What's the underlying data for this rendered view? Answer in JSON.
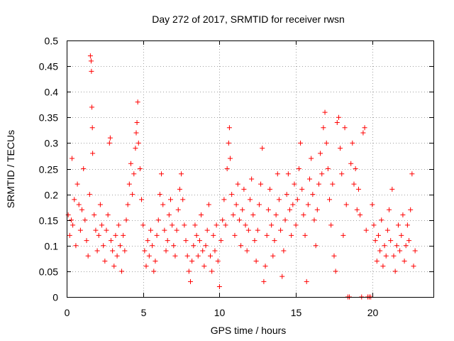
{
  "chart_data": {
    "type": "scatter",
    "title": "Day 272 of 2017, SRMTID for receiver rwsn",
    "xlabel": "GPS time / hours",
    "ylabel": "SRMTID / TECUs",
    "xlim": [
      0,
      24
    ],
    "ylim": [
      0,
      0.5
    ],
    "x_ticks": [
      0,
      5,
      10,
      15,
      20
    ],
    "x_tick_labels": [
      "0",
      "5",
      "10",
      "15",
      "20"
    ],
    "y_ticks": [
      0,
      0.05,
      0.1,
      0.15,
      0.2,
      0.25,
      0.3,
      0.35,
      0.4,
      0.45,
      0.5
    ],
    "y_tick_labels": [
      "0",
      "0.05",
      "0.1",
      "0.15",
      "0.2",
      "0.25",
      "0.3",
      "0.35",
      "0.4",
      "0.45",
      "0.5"
    ],
    "grid": true,
    "marker": "+",
    "series": [
      {
        "name": "SRMTID",
        "color": "#ff0000",
        "points": [
          [
            0.1,
            0.16
          ],
          [
            0.2,
            0.12
          ],
          [
            0.3,
            0.15
          ],
          [
            0.35,
            0.27
          ],
          [
            0.4,
            0.14
          ],
          [
            0.5,
            0.19
          ],
          [
            0.6,
            0.1
          ],
          [
            0.7,
            0.22
          ],
          [
            0.8,
            0.18
          ],
          [
            0.9,
            0.13
          ],
          [
            1.0,
            0.17
          ],
          [
            1.1,
            0.25
          ],
          [
            1.2,
            0.15
          ],
          [
            1.3,
            0.11
          ],
          [
            1.4,
            0.08
          ],
          [
            1.5,
            0.2
          ],
          [
            1.55,
            0.47
          ],
          [
            1.6,
            0.46
          ],
          [
            1.62,
            0.44
          ],
          [
            1.65,
            0.37
          ],
          [
            1.68,
            0.33
          ],
          [
            1.7,
            0.28
          ],
          [
            1.8,
            0.16
          ],
          [
            1.9,
            0.13
          ],
          [
            2.0,
            0.09
          ],
          [
            2.1,
            0.12
          ],
          [
            2.2,
            0.18
          ],
          [
            2.3,
            0.14
          ],
          [
            2.4,
            0.1
          ],
          [
            2.5,
            0.07
          ],
          [
            2.6,
            0.13
          ],
          [
            2.7,
            0.16
          ],
          [
            2.8,
            0.3
          ],
          [
            2.85,
            0.31
          ],
          [
            2.9,
            0.11
          ],
          [
            3.0,
            0.09
          ],
          [
            3.1,
            0.06
          ],
          [
            3.2,
            0.12
          ],
          [
            3.3,
            0.08
          ],
          [
            3.4,
            0.14
          ],
          [
            3.5,
            0.1
          ],
          [
            3.6,
            0.05
          ],
          [
            3.7,
            0.12
          ],
          [
            3.8,
            0.09
          ],
          [
            3.9,
            0.15
          ],
          [
            4.0,
            0.18
          ],
          [
            4.1,
            0.22
          ],
          [
            4.2,
            0.26
          ],
          [
            4.3,
            0.2
          ],
          [
            4.4,
            0.24
          ],
          [
            4.5,
            0.29
          ],
          [
            4.55,
            0.32
          ],
          [
            4.6,
            0.34
          ],
          [
            4.65,
            0.38
          ],
          [
            4.7,
            0.3
          ],
          [
            4.8,
            0.25
          ],
          [
            4.9,
            0.19
          ],
          [
            5.0,
            0.14
          ],
          [
            5.1,
            0.09
          ],
          [
            5.2,
            0.06
          ],
          [
            5.3,
            0.11
          ],
          [
            5.4,
            0.08
          ],
          [
            5.5,
            0.13
          ],
          [
            5.6,
            0.1
          ],
          [
            5.7,
            0.05
          ],
          [
            5.8,
            0.07
          ],
          [
            5.9,
            0.12
          ],
          [
            6.0,
            0.15
          ],
          [
            6.1,
            0.2
          ],
          [
            6.2,
            0.24
          ],
          [
            6.3,
            0.18
          ],
          [
            6.4,
            0.13
          ],
          [
            6.5,
            0.09
          ],
          [
            6.6,
            0.11
          ],
          [
            6.7,
            0.16
          ],
          [
            6.8,
            0.19
          ],
          [
            6.9,
            0.14
          ],
          [
            7.0,
            0.1
          ],
          [
            7.1,
            0.08
          ],
          [
            7.2,
            0.13
          ],
          [
            7.3,
            0.17
          ],
          [
            7.4,
            0.21
          ],
          [
            7.5,
            0.24
          ],
          [
            7.6,
            0.19
          ],
          [
            7.7,
            0.14
          ],
          [
            7.8,
            0.11
          ],
          [
            7.9,
            0.08
          ],
          [
            8.0,
            0.05
          ],
          [
            8.1,
            0.03
          ],
          [
            8.2,
            0.07
          ],
          [
            8.3,
            0.1
          ],
          [
            8.4,
            0.14
          ],
          [
            8.5,
            0.12
          ],
          [
            8.6,
            0.08
          ],
          [
            8.7,
            0.11
          ],
          [
            8.8,
            0.16
          ],
          [
            8.9,
            0.09
          ],
          [
            9.0,
            0.06
          ],
          [
            9.1,
            0.1
          ],
          [
            9.2,
            0.13
          ],
          [
            9.3,
            0.18
          ],
          [
            9.4,
            0.08
          ],
          [
            9.5,
            0.05
          ],
          [
            9.6,
            0.12
          ],
          [
            9.7,
            0.09
          ],
          [
            9.8,
            0.14
          ],
          [
            9.9,
            0.07
          ],
          [
            10.0,
            0.02
          ],
          [
            10.1,
            0.11
          ],
          [
            10.2,
            0.15
          ],
          [
            10.3,
            0.19
          ],
          [
            10.4,
            0.14
          ],
          [
            10.5,
            0.25
          ],
          [
            10.6,
            0.3
          ],
          [
            10.65,
            0.33
          ],
          [
            10.7,
            0.27
          ],
          [
            10.8,
            0.2
          ],
          [
            10.9,
            0.16
          ],
          [
            11.0,
            0.12
          ],
          [
            11.1,
            0.18
          ],
          [
            11.2,
            0.22
          ],
          [
            11.3,
            0.15
          ],
          [
            11.4,
            0.1
          ],
          [
            11.5,
            0.17
          ],
          [
            11.6,
            0.21
          ],
          [
            11.7,
            0.14
          ],
          [
            11.8,
            0.09
          ],
          [
            11.9,
            0.13
          ],
          [
            12.0,
            0.19
          ],
          [
            12.1,
            0.23
          ],
          [
            12.2,
            0.16
          ],
          [
            12.3,
            0.11
          ],
          [
            12.4,
            0.07
          ],
          [
            12.5,
            0.13
          ],
          [
            12.6,
            0.18
          ],
          [
            12.7,
            0.22
          ],
          [
            12.8,
            0.29
          ],
          [
            12.9,
            0.03
          ],
          [
            13.0,
            0.06
          ],
          [
            13.1,
            0.12
          ],
          [
            13.2,
            0.17
          ],
          [
            13.3,
            0.21
          ],
          [
            13.4,
            0.14
          ],
          [
            13.5,
            0.08
          ],
          [
            13.6,
            0.11
          ],
          [
            13.7,
            0.16
          ],
          [
            13.8,
            0.24
          ],
          [
            13.9,
            0.19
          ],
          [
            14.0,
            0.13
          ],
          [
            14.1,
            0.04
          ],
          [
            14.2,
            0.09
          ],
          [
            14.3,
            0.15
          ],
          [
            14.4,
            0.2
          ],
          [
            14.5,
            0.24
          ],
          [
            14.6,
            0.17
          ],
          [
            14.7,
            0.12
          ],
          [
            14.8,
            0.18
          ],
          [
            14.9,
            0.22
          ],
          [
            15.0,
            0.14
          ],
          [
            15.1,
            0.19
          ],
          [
            15.2,
            0.25
          ],
          [
            15.3,
            0.3
          ],
          [
            15.4,
            0.21
          ],
          [
            15.5,
            0.16
          ],
          [
            15.6,
            0.12
          ],
          [
            15.7,
            0.03
          ],
          [
            15.8,
            0.18
          ],
          [
            15.9,
            0.23
          ],
          [
            16.0,
            0.27
          ],
          [
            16.1,
            0.2
          ],
          [
            16.2,
            0.15
          ],
          [
            16.3,
            0.1
          ],
          [
            16.4,
            0.17
          ],
          [
            16.5,
            0.22
          ],
          [
            16.6,
            0.28
          ],
          [
            16.7,
            0.24
          ],
          [
            16.8,
            0.33
          ],
          [
            16.9,
            0.36
          ],
          [
            17.0,
            0.3
          ],
          [
            17.1,
            0.25
          ],
          [
            17.2,
            0.19
          ],
          [
            17.3,
            0.14
          ],
          [
            17.4,
            0.22
          ],
          [
            17.5,
            0.08
          ],
          [
            17.6,
            0.05
          ],
          [
            17.7,
            0.34
          ],
          [
            17.8,
            0.35
          ],
          [
            17.9,
            0.29
          ],
          [
            18.0,
            0.24
          ],
          [
            18.1,
            0.12
          ],
          [
            18.2,
            0.33
          ],
          [
            18.3,
            0.18
          ],
          [
            18.4,
            0.0
          ],
          [
            18.5,
            0.0
          ],
          [
            18.6,
            0.26
          ],
          [
            18.7,
            0.3
          ],
          [
            18.8,
            0.22
          ],
          [
            18.9,
            0.25
          ],
          [
            19.0,
            0.17
          ],
          [
            19.1,
            0.21
          ],
          [
            19.2,
            0.16
          ],
          [
            19.3,
            0.0
          ],
          [
            19.4,
            0.32
          ],
          [
            19.5,
            0.33
          ],
          [
            19.6,
            0.13
          ],
          [
            19.7,
            0.0
          ],
          [
            19.8,
            0.0
          ],
          [
            19.9,
            0.0
          ],
          [
            20.0,
            0.18
          ],
          [
            20.1,
            0.14
          ],
          [
            20.2,
            0.11
          ],
          [
            20.3,
            0.07
          ],
          [
            20.4,
            0.12
          ],
          [
            20.5,
            0.09
          ],
          [
            20.6,
            0.15
          ],
          [
            20.7,
            0.06
          ],
          [
            20.8,
            0.1
          ],
          [
            20.9,
            0.08
          ],
          [
            21.0,
            0.13
          ],
          [
            21.1,
            0.17
          ],
          [
            21.2,
            0.11
          ],
          [
            21.3,
            0.21
          ],
          [
            21.4,
            0.08
          ],
          [
            21.5,
            0.05
          ],
          [
            21.6,
            0.1
          ],
          [
            21.7,
            0.14
          ],
          [
            21.8,
            0.09
          ],
          [
            21.9,
            0.12
          ],
          [
            22.0,
            0.16
          ],
          [
            22.1,
            0.07
          ],
          [
            22.2,
            0.1
          ],
          [
            22.3,
            0.14
          ],
          [
            22.4,
            0.11
          ],
          [
            22.5,
            0.17
          ],
          [
            22.6,
            0.24
          ],
          [
            22.7,
            0.06
          ],
          [
            22.8,
            0.09
          ]
        ]
      }
    ]
  }
}
